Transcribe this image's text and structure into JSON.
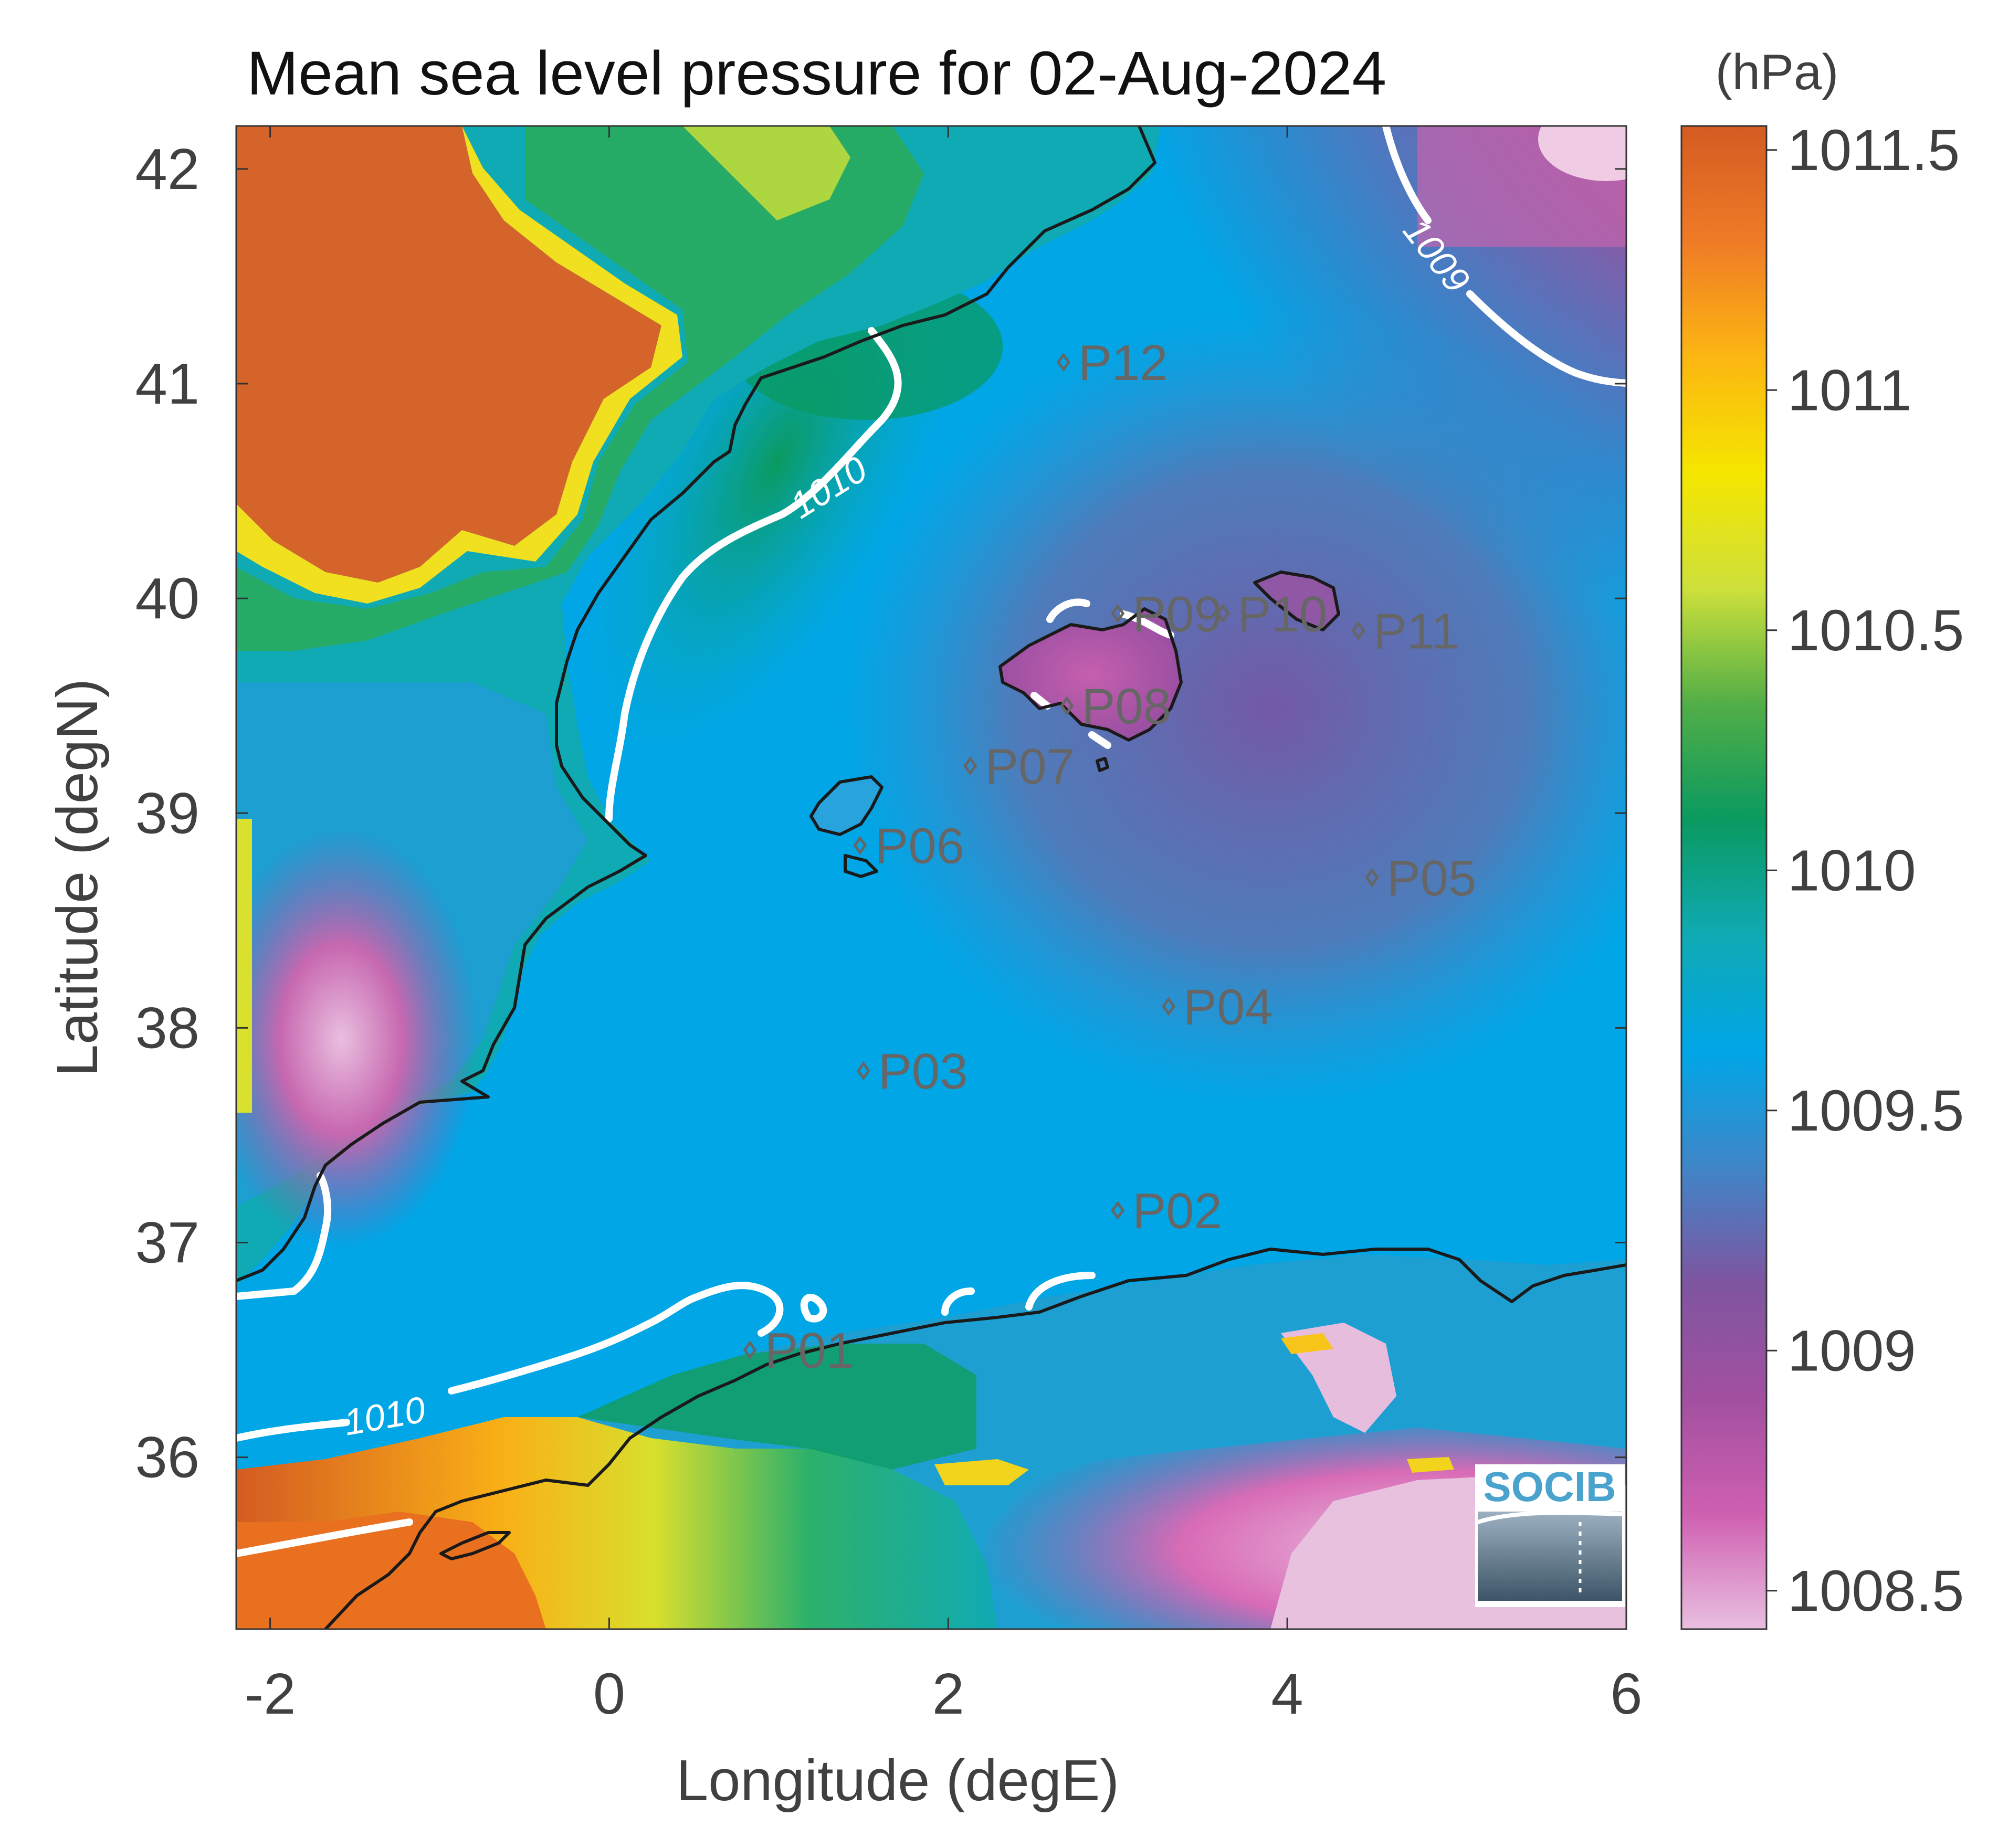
{
  "title": "Mean sea level pressure for 02-Aug-2024",
  "units": "(hPa)",
  "xlabel": "Longitude (degE)",
  "ylabel": "Latitude (degN)",
  "chart_data": {
    "type": "heatmap",
    "map": "Western Mediterranean - Balearic Islands",
    "xlim": [
      -2.2,
      6
    ],
    "ylim": [
      35.2,
      42.2
    ],
    "xticks": [
      "-2",
      "0",
      "2",
      "4",
      "6"
    ],
    "xtick_values": [
      -2,
      0,
      2,
      4,
      6
    ],
    "yticks": [
      "36",
      "37",
      "38",
      "39",
      "40",
      "41",
      "42"
    ],
    "ytick_values": [
      36,
      37,
      38,
      39,
      40,
      41,
      42
    ],
    "colorbar": {
      "range": [
        1008.42,
        1011.55
      ],
      "ticks": [
        "1008.5",
        "1009",
        "1009.5",
        "1010",
        "1010.5",
        "1011",
        "1011.5"
      ],
      "tick_values": [
        1008.5,
        1009,
        1009.5,
        1010,
        1010.5,
        1011,
        1011.5
      ],
      "colors": [
        "#e8bfe0",
        "#cf5fb0",
        "#a250a0",
        "#7e55a0",
        "#3f86c8",
        "#00a6e6",
        "#10aab4",
        "#0a9a60",
        "#52ae47",
        "#cde03a",
        "#f5e600",
        "#fcb612",
        "#ef7b26",
        "#d45b22"
      ]
    },
    "contours": [
      {
        "level": 1009,
        "label": "1009"
      },
      {
        "level": 1010,
        "label": "1010"
      },
      {
        "level": 1010,
        "label": "1010"
      }
    ],
    "stations": [
      {
        "name": "P01",
        "lon": 0.83,
        "lat": 36.5
      },
      {
        "name": "P02",
        "lon": 3.0,
        "lat": 37.15
      },
      {
        "name": "P03",
        "lon": 1.5,
        "lat": 37.8
      },
      {
        "name": "P04",
        "lon": 3.3,
        "lat": 38.1
      },
      {
        "name": "P05",
        "lon": 4.5,
        "lat": 38.7
      },
      {
        "name": "P06",
        "lon": 1.48,
        "lat": 38.85
      },
      {
        "name": "P07",
        "lon": 2.13,
        "lat": 39.22
      },
      {
        "name": "P08",
        "lon": 2.7,
        "lat": 39.5
      },
      {
        "name": "P09",
        "lon": 3.0,
        "lat": 39.93
      },
      {
        "name": "P10",
        "lon": 3.62,
        "lat": 39.93
      },
      {
        "name": "P11",
        "lon": 4.42,
        "lat": 39.85
      },
      {
        "name": "P12",
        "lon": 2.68,
        "lat": 41.1
      }
    ]
  },
  "logo": {
    "text": "SOCIB"
  }
}
